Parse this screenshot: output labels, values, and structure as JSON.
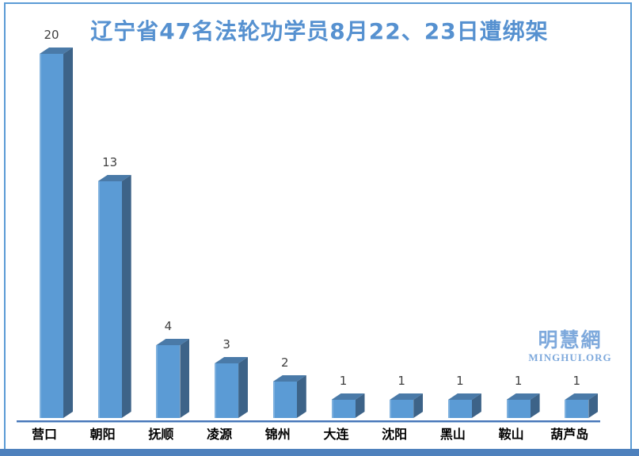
{
  "title": {
    "text": "辽宁省47名法轮功学员8月22、23日遭绑架",
    "color": "#5691D0"
  },
  "watermark": {
    "cjk": "明慧網",
    "latin": "MINGHUI.ORG",
    "color": "#7EA9DC"
  },
  "frame": {
    "border_color": "#5B9BD5",
    "footer_color": "#4E81BD"
  },
  "chart_data": {
    "type": "bar",
    "style": "3d-column",
    "title": "辽宁省47名法轮功学员8月22、23日遭绑架",
    "categories": [
      "营口",
      "朝阳",
      "抚顺",
      "凌源",
      "锦州",
      "大连",
      "沈阳",
      "黑山",
      "鞍山",
      "葫芦岛"
    ],
    "values": [
      20,
      13,
      4,
      3,
      2,
      1,
      1,
      1,
      1,
      1
    ],
    "data_labels": [
      20,
      13,
      4,
      3,
      2,
      1,
      1,
      1,
      1,
      1
    ],
    "xlabel": "",
    "ylabel": "",
    "ylim": [
      0,
      20
    ],
    "grid": false,
    "legend": false,
    "colors": {
      "bar_front": "#5B9BD5",
      "bar_top": "#4A7AA8",
      "bar_side": "#3D6388",
      "axis_line": "#4776B8",
      "value_label": "#3F3F3F",
      "category_label": "#000000"
    }
  }
}
